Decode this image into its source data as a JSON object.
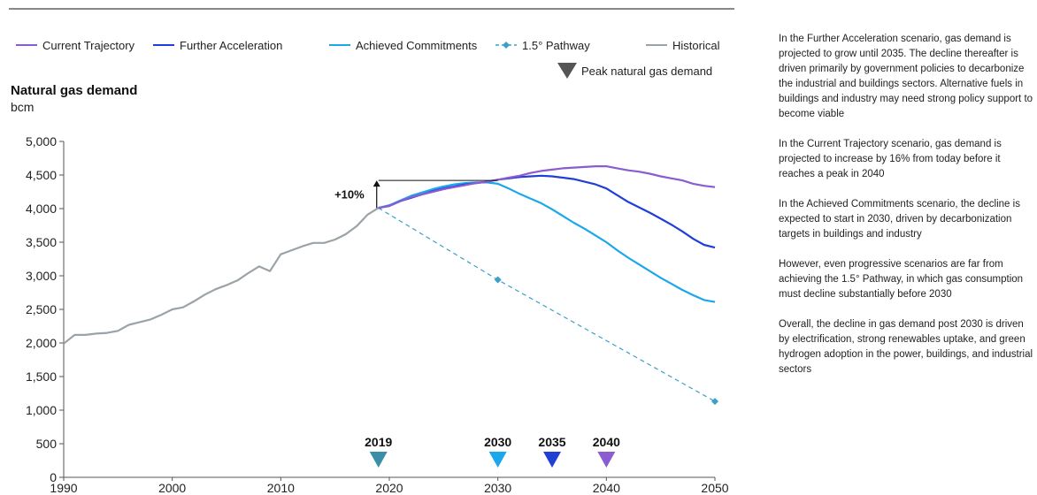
{
  "chart_data": {
    "type": "line",
    "title": "Natural gas demand",
    "unit": "bcm",
    "xlim": [
      1990,
      2050
    ],
    "ylim": [
      0,
      5000
    ],
    "x_ticks": [
      "1990",
      "2000",
      "2010",
      "2020",
      "2030",
      "2040",
      "2050"
    ],
    "y_ticks": [
      "0",
      "500",
      "1,000",
      "1,500",
      "2,000",
      "2,500",
      "3,000",
      "3,500",
      "4,000",
      "4,500",
      "5,000"
    ],
    "grid": false,
    "legend_position": "top",
    "series": [
      {
        "name": "Historical",
        "color": "#9aa3a8",
        "style": "solid",
        "points": [
          [
            1990,
            1990
          ],
          [
            1991,
            2120
          ],
          [
            1992,
            2120
          ],
          [
            1993,
            2140
          ],
          [
            1994,
            2150
          ],
          [
            1995,
            2180
          ],
          [
            1996,
            2270
          ],
          [
            1997,
            2310
          ],
          [
            1998,
            2350
          ],
          [
            1999,
            2420
          ],
          [
            2000,
            2500
          ],
          [
            2001,
            2530
          ],
          [
            2002,
            2620
          ],
          [
            2003,
            2720
          ],
          [
            2004,
            2800
          ],
          [
            2005,
            2860
          ],
          [
            2006,
            2930
          ],
          [
            2007,
            3040
          ],
          [
            2008,
            3140
          ],
          [
            2009,
            3070
          ],
          [
            2010,
            3320
          ],
          [
            2011,
            3380
          ],
          [
            2012,
            3440
          ],
          [
            2013,
            3490
          ],
          [
            2014,
            3490
          ],
          [
            2015,
            3540
          ],
          [
            2016,
            3620
          ],
          [
            2017,
            3740
          ],
          [
            2018,
            3910
          ],
          [
            2019,
            4010
          ]
        ]
      },
      {
        "name": "Current Trajectory",
        "color": "#8a5bd1",
        "style": "solid",
        "points": [
          [
            2019,
            4010
          ],
          [
            2020,
            4040
          ],
          [
            2021,
            4110
          ],
          [
            2022,
            4170
          ],
          [
            2023,
            4210
          ],
          [
            2024,
            4250
          ],
          [
            2025,
            4290
          ],
          [
            2026,
            4320
          ],
          [
            2027,
            4350
          ],
          [
            2028,
            4380
          ],
          [
            2029,
            4400
          ],
          [
            2030,
            4430
          ],
          [
            2031,
            4460
          ],
          [
            2032,
            4490
          ],
          [
            2033,
            4530
          ],
          [
            2034,
            4560
          ],
          [
            2035,
            4580
          ],
          [
            2036,
            4600
          ],
          [
            2037,
            4610
          ],
          [
            2038,
            4620
          ],
          [
            2039,
            4630
          ],
          [
            2040,
            4630
          ],
          [
            2041,
            4600
          ],
          [
            2042,
            4570
          ],
          [
            2043,
            4550
          ],
          [
            2044,
            4520
          ],
          [
            2045,
            4480
          ],
          [
            2046,
            4450
          ],
          [
            2047,
            4420
          ],
          [
            2048,
            4370
          ],
          [
            2049,
            4340
          ],
          [
            2050,
            4320
          ]
        ]
      },
      {
        "name": "Further Acceleration",
        "color": "#1f3fd6",
        "style": "solid",
        "points": [
          [
            2019,
            4010
          ],
          [
            2020,
            4040
          ],
          [
            2021,
            4110
          ],
          [
            2022,
            4160
          ],
          [
            2023,
            4210
          ],
          [
            2024,
            4260
          ],
          [
            2025,
            4300
          ],
          [
            2026,
            4330
          ],
          [
            2027,
            4360
          ],
          [
            2028,
            4380
          ],
          [
            2029,
            4400
          ],
          [
            2030,
            4430
          ],
          [
            2031,
            4450
          ],
          [
            2032,
            4470
          ],
          [
            2033,
            4480
          ],
          [
            2034,
            4490
          ],
          [
            2035,
            4480
          ],
          [
            2036,
            4460
          ],
          [
            2037,
            4440
          ],
          [
            2038,
            4400
          ],
          [
            2039,
            4360
          ],
          [
            2040,
            4300
          ],
          [
            2041,
            4200
          ],
          [
            2042,
            4100
          ],
          [
            2043,
            4020
          ],
          [
            2044,
            3940
          ],
          [
            2045,
            3850
          ],
          [
            2046,
            3760
          ],
          [
            2047,
            3660
          ],
          [
            2048,
            3550
          ],
          [
            2049,
            3460
          ],
          [
            2050,
            3420
          ]
        ]
      },
      {
        "name": "Achieved Commitments",
        "color": "#1aa7ec",
        "style": "solid",
        "points": [
          [
            2019,
            4010
          ],
          [
            2020,
            4050
          ],
          [
            2021,
            4120
          ],
          [
            2022,
            4190
          ],
          [
            2023,
            4240
          ],
          [
            2024,
            4290
          ],
          [
            2025,
            4330
          ],
          [
            2026,
            4360
          ],
          [
            2027,
            4380
          ],
          [
            2028,
            4390
          ],
          [
            2029,
            4390
          ],
          [
            2030,
            4370
          ],
          [
            2031,
            4300
          ],
          [
            2032,
            4220
          ],
          [
            2033,
            4150
          ],
          [
            2034,
            4080
          ],
          [
            2035,
            3990
          ],
          [
            2036,
            3890
          ],
          [
            2037,
            3790
          ],
          [
            2038,
            3700
          ],
          [
            2039,
            3600
          ],
          [
            2040,
            3500
          ],
          [
            2041,
            3380
          ],
          [
            2042,
            3270
          ],
          [
            2043,
            3170
          ],
          [
            2044,
            3070
          ],
          [
            2045,
            2970
          ],
          [
            2046,
            2880
          ],
          [
            2047,
            2790
          ],
          [
            2048,
            2710
          ],
          [
            2049,
            2640
          ],
          [
            2050,
            2610
          ]
        ]
      },
      {
        "name": "1.5° Pathway",
        "color": "#3aa0c8",
        "style": "dashed",
        "markers": [
          [
            2030,
            2940
          ],
          [
            2050,
            1130
          ]
        ],
        "points": [
          [
            2019,
            4010
          ],
          [
            2030,
            2940
          ],
          [
            2050,
            1130
          ]
        ]
      }
    ],
    "legend": {
      "items": [
        {
          "label": "Current Trajectory",
          "series": 1
        },
        {
          "label": "Further Acceleration",
          "series": 2
        },
        {
          "label": "Achieved Commitments",
          "series": 3
        },
        {
          "label": "1.5° Pathway",
          "series": 4
        },
        {
          "label": "Historical",
          "series": 0
        }
      ],
      "peak_label": "Peak natural gas demand",
      "peak_color": "#555555"
    },
    "annotation": {
      "label": "+10%",
      "from": [
        2019,
        4010
      ],
      "to": [
        2019,
        4420
      ],
      "line_to_year": 2030
    },
    "peak_markers": [
      {
        "year": 2019,
        "label": "2019",
        "color": "#3a8fa6"
      },
      {
        "year": 2030,
        "label": "2030",
        "color": "#1aa7ec"
      },
      {
        "year": 2035,
        "label": "2035",
        "color": "#1f3fd6"
      },
      {
        "year": 2040,
        "label": "2040",
        "color": "#8a5bd1"
      }
    ]
  },
  "notes": [
    "In the Further Acceleration scenario, gas demand is projected to grow until 2035. The decline thereafter is driven primarily by government policies to decarbonize the industrial and buildings sectors. Alternative fuels in buildings and industry may need strong policy support to become viable",
    "In the Current Trajectory scenario, gas demand is projected to increase by 16% from today before it reaches a peak in 2040",
    "In the Achieved Commitments scenario, the decline is expected to start in 2030, driven by decarbonization targets in buildings and industry",
    "However, even progressive scenarios are far from achieving the 1.5° Pathway, in which gas consumption must decline substantially before 2030",
    "Overall, the decline in gas demand post 2030 is driven by electrification, strong renewables uptake, and green hydrogen adoption in the power, buildings, and industrial sectors"
  ]
}
